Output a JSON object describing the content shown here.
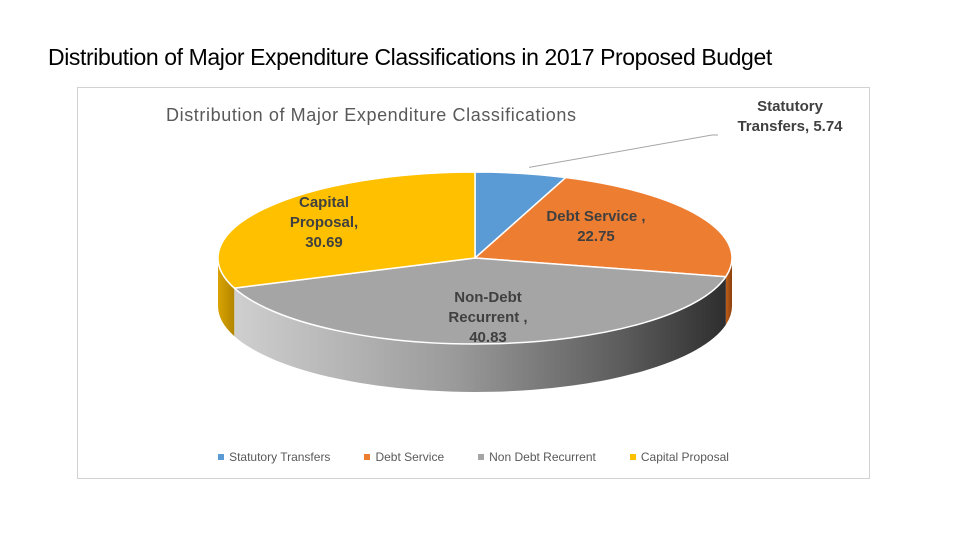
{
  "slide": {
    "title": "Distribution of Major Expenditure Classifications in 2017 Proposed Budget"
  },
  "chart_data": {
    "type": "pie",
    "title": "Distribution of Major Expenditure Classifications",
    "style": "3d",
    "legend_position": "bottom",
    "slices": [
      {
        "name": "Statutory Transfers",
        "value": 5.74,
        "color": "#5b9bd5",
        "label_lines": [
          "Statutory",
          "Transfers,  5.74"
        ]
      },
      {
        "name": "Debt Service",
        "value": 22.75,
        "color": "#ed7d31",
        "label_lines": [
          "Debt Service ,",
          "22.75"
        ]
      },
      {
        "name": "Non Debt Recurrent",
        "value": 40.83,
        "color": "#a5a5a5",
        "label_lines": [
          "Non-Debt",
          "Recurrent ,",
          "40.83"
        ]
      },
      {
        "name": "Capital Proposal",
        "value": 30.69,
        "color": "#ffc000",
        "label_lines": [
          "Capital",
          "Proposal,",
          "30.69"
        ]
      }
    ]
  }
}
